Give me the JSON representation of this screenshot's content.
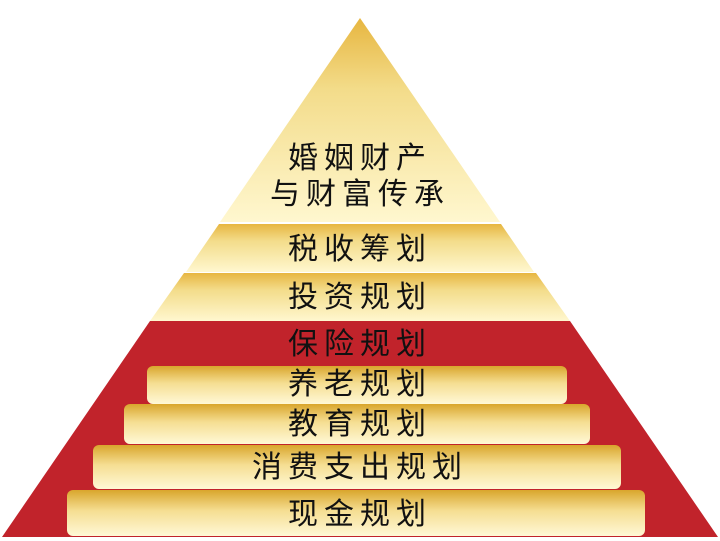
{
  "pyramid": {
    "apex_lines": [
      "婚姻财产",
      "与财富传承"
    ],
    "upper_tiers": [
      "税收筹划",
      "投资规划"
    ],
    "red_section_title": "保险规划",
    "lower_bars": [
      "养老规划",
      "教育规划",
      "消费支出规划",
      "现金规划"
    ]
  },
  "colors": {
    "gold_light": "#fff6c8",
    "gold_mid": "#f1d784",
    "gold_dark": "#d9a62c",
    "red": "#c1232b"
  }
}
